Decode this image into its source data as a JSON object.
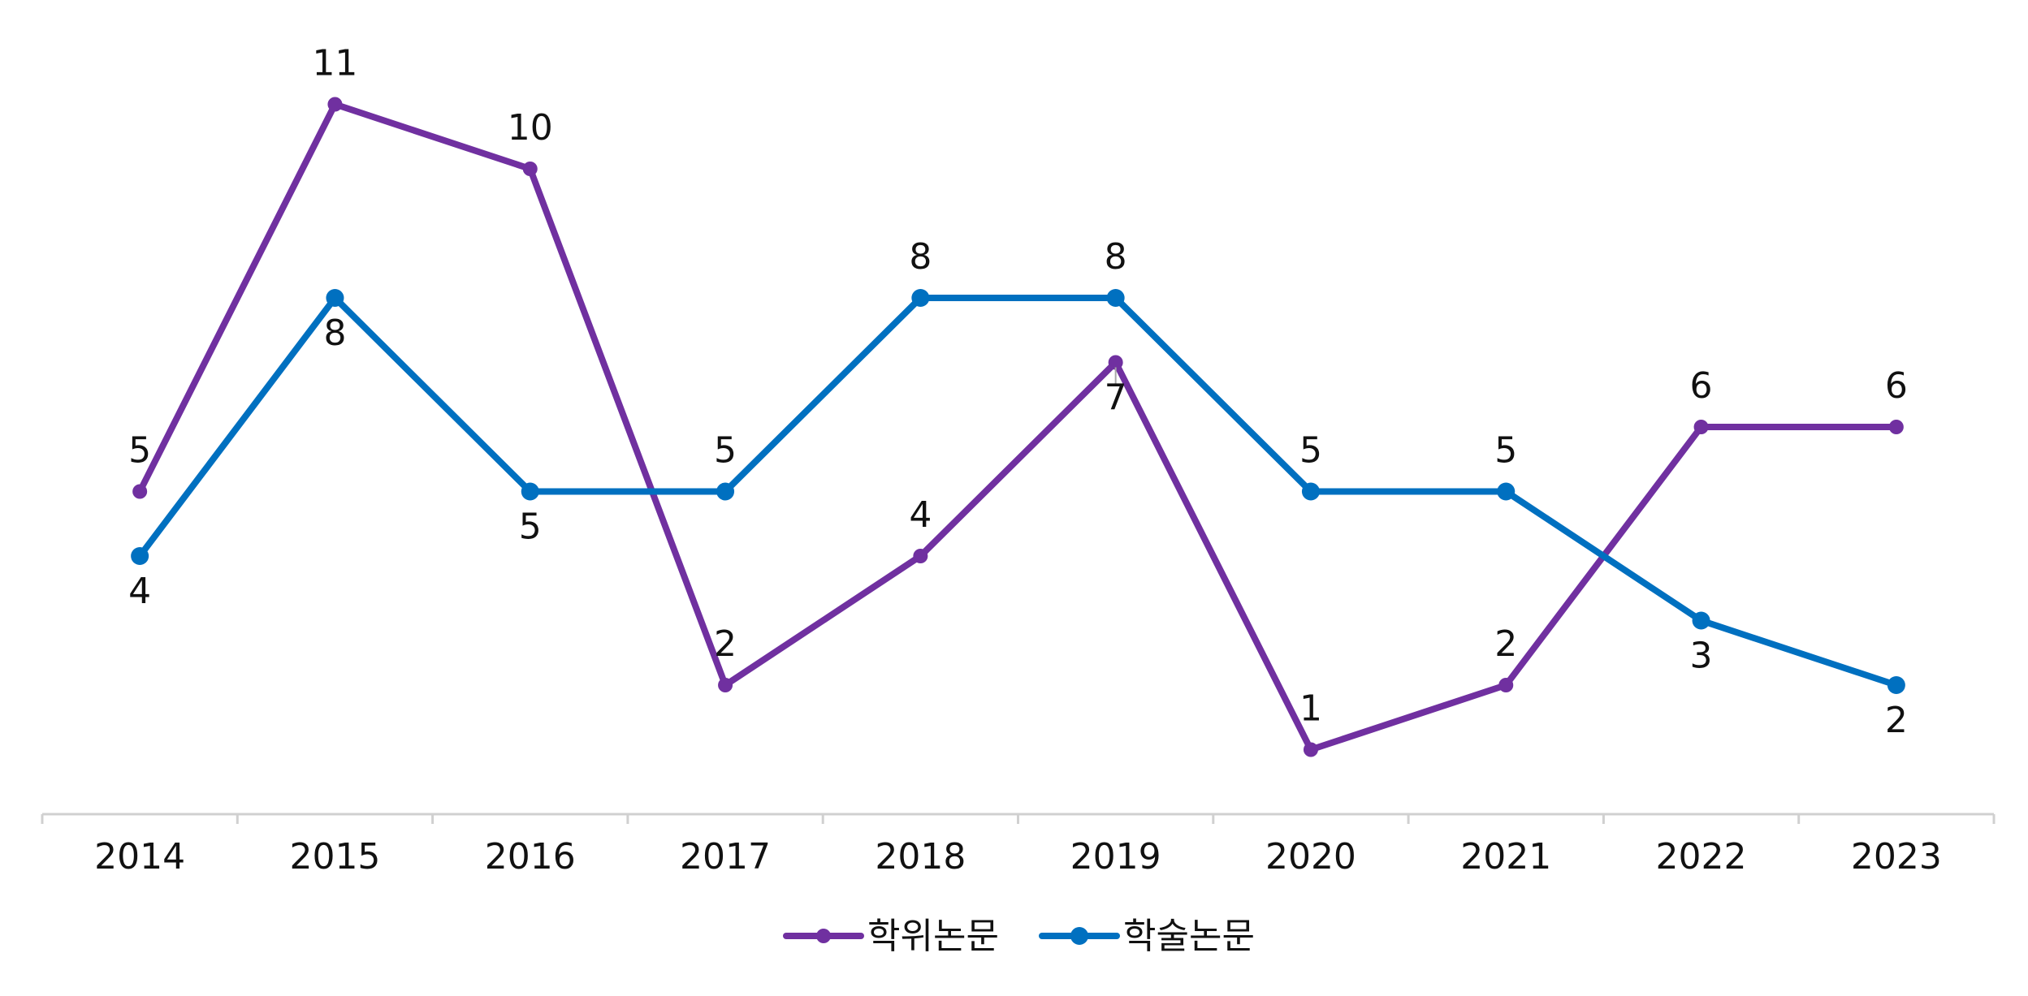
{
  "chart_data": {
    "type": "line",
    "categories": [
      "2014",
      "2015",
      "2016",
      "2017",
      "2018",
      "2019",
      "2020",
      "2021",
      "2022",
      "2023"
    ],
    "series": [
      {
        "name": "학위논문",
        "color": "#7030A0",
        "values": [
          5,
          11,
          10,
          2,
          4,
          7,
          1,
          2,
          6,
          6
        ]
      },
      {
        "name": "학술논문",
        "color": "#0070C0",
        "values": [
          4,
          8,
          5,
          5,
          8,
          8,
          5,
          5,
          3,
          2
        ]
      }
    ],
    "ylim": [
      0,
      12
    ],
    "grid": false,
    "legend_position": "bottom",
    "axis_color": "#D0D0D0"
  }
}
